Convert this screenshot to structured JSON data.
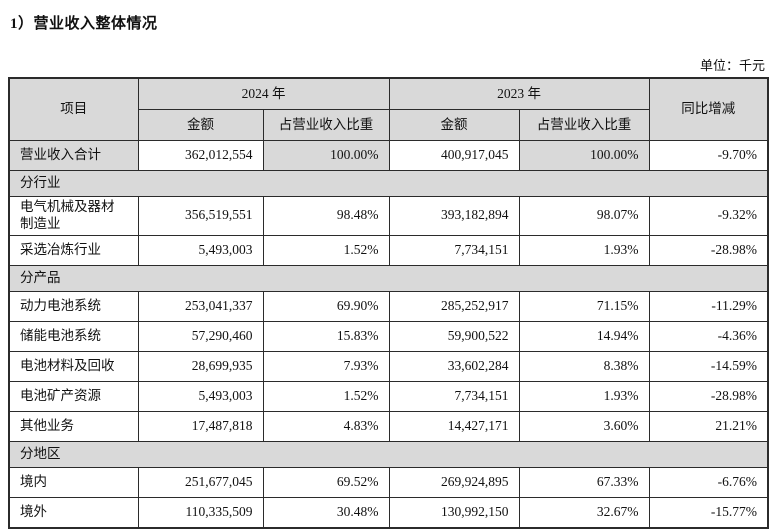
{
  "page": {
    "title": "1）营业收入整体情况",
    "unit_label": "单位：千元"
  },
  "table": {
    "headers": {
      "item": "项目",
      "year_2024": "2024 年",
      "year_2023": "2023 年",
      "amount": "金额",
      "ratio": "占营业收入比重",
      "yoy": "同比增减"
    },
    "rows": [
      {
        "kind": "data",
        "label": "营业收入合计",
        "amount_2024": "362,012,554",
        "ratio_2024": "100.00%",
        "amount_2023": "400,917,045",
        "ratio_2023": "100.00%",
        "yoy": "-9.70%"
      },
      {
        "kind": "section",
        "label": "分行业"
      },
      {
        "kind": "data",
        "label": "电气机械及器材制造业",
        "amount_2024": "356,519,551",
        "ratio_2024": "98.48%",
        "amount_2023": "393,182,894",
        "ratio_2023": "98.07%",
        "yoy": "-9.32%"
      },
      {
        "kind": "data",
        "label": "采选冶炼行业",
        "amount_2024": "5,493,003",
        "ratio_2024": "1.52%",
        "amount_2023": "7,734,151",
        "ratio_2023": "1.93%",
        "yoy": "-28.98%"
      },
      {
        "kind": "section",
        "label": "分产品"
      },
      {
        "kind": "data",
        "label": "动力电池系统",
        "amount_2024": "253,041,337",
        "ratio_2024": "69.90%",
        "amount_2023": "285,252,917",
        "ratio_2023": "71.15%",
        "yoy": "-11.29%"
      },
      {
        "kind": "data",
        "label": "储能电池系统",
        "amount_2024": "57,290,460",
        "ratio_2024": "15.83%",
        "amount_2023": "59,900,522",
        "ratio_2023": "14.94%",
        "yoy": "-4.36%"
      },
      {
        "kind": "data",
        "label": "电池材料及回收",
        "amount_2024": "28,699,935",
        "ratio_2024": "7.93%",
        "amount_2023": "33,602,284",
        "ratio_2023": "8.38%",
        "yoy": "-14.59%"
      },
      {
        "kind": "data",
        "label": "电池矿产资源",
        "amount_2024": "5,493,003",
        "ratio_2024": "1.52%",
        "amount_2023": "7,734,151",
        "ratio_2023": "1.93%",
        "yoy": "-28.98%"
      },
      {
        "kind": "data",
        "label": "其他业务",
        "amount_2024": "17,487,818",
        "ratio_2024": "4.83%",
        "amount_2023": "14,427,171",
        "ratio_2023": "3.60%",
        "yoy": "21.21%"
      },
      {
        "kind": "section",
        "label": "分地区"
      },
      {
        "kind": "data",
        "label": "境内",
        "amount_2024": "251,677,045",
        "ratio_2024": "69.52%",
        "amount_2023": "269,924,895",
        "ratio_2023": "67.33%",
        "yoy": "-6.76%"
      },
      {
        "kind": "data",
        "label": "境外",
        "amount_2024": "110,335,509",
        "ratio_2024": "30.48%",
        "amount_2023": "130,992,150",
        "ratio_2023": "32.67%",
        "yoy": "-15.77%"
      }
    ]
  }
}
